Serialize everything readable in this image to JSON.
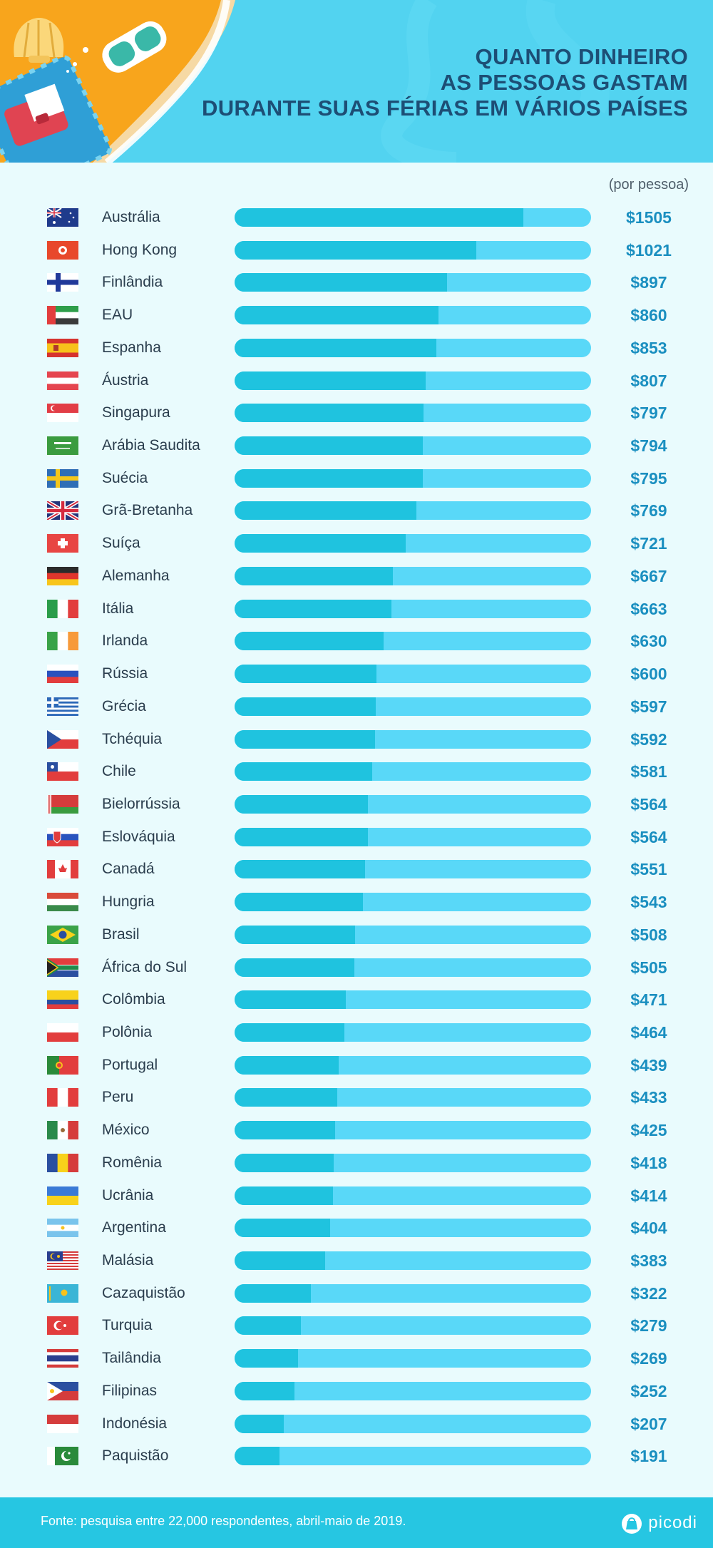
{
  "header": {
    "title_lines": [
      "QUANTO DINHEIRO",
      "AS PESSOAS GASTAM",
      "DURANTE SUAS FÉRIAS EM VÁRIOS PAÍSES"
    ]
  },
  "unit_label": "(por pessoa)",
  "chart_data": {
    "type": "bar",
    "orientation": "horizontal",
    "title": "QUANTO DINHEIRO AS PESSOAS GASTAM DURANTE SUAS FÉRIAS EM VÁRIOS PAÍSES",
    "unit": "(por pessoa)",
    "max_value": 1505,
    "categories": [
      "Austrália",
      "Hong Kong",
      "Finlândia",
      "EAU",
      "Espanha",
      "Áustria",
      "Singapura",
      "Arábia Saudita",
      "Suécia",
      "Grã-Bretanha",
      "Suíça",
      "Alemanha",
      "Itália",
      "Irlanda",
      "Rússia",
      "Grécia",
      "Tchéquia",
      "Chile",
      "Bielorrússia",
      "Eslováquia",
      "Canadá",
      "Hungria",
      "Brasil",
      "África do Sul",
      "Colômbia",
      "Polônia",
      "Portugal",
      "Peru",
      "México",
      "Romênia",
      "Ucrânia",
      "Argentina",
      "Malásia",
      "Cazaquistão",
      "Turquia",
      "Tailândia",
      "Filipinas",
      "Indonésia",
      "Paquistão"
    ],
    "values": [
      1505,
      1021,
      897,
      860,
      853,
      807,
      797,
      794,
      795,
      769,
      721,
      667,
      663,
      630,
      600,
      597,
      592,
      581,
      564,
      564,
      551,
      543,
      508,
      505,
      471,
      464,
      439,
      433,
      425,
      418,
      414,
      404,
      383,
      322,
      279,
      269,
      252,
      207,
      191
    ],
    "value_labels": [
      "$1505",
      "$1021",
      "$897",
      "$860",
      "$853",
      "$807",
      "$797",
      "$794",
      "$795",
      "$769",
      "$721",
      "$667",
      "$663",
      "$630",
      "$600",
      "$597",
      "$592",
      "$581",
      "$564",
      "$564",
      "$551",
      "$543",
      "$508",
      "$505",
      "$471",
      "$464",
      "$439",
      "$433",
      "$425",
      "$418",
      "$414",
      "$404",
      "$383",
      "$322",
      "$279",
      "$269",
      "$252",
      "$207",
      "$191"
    ],
    "flags": [
      "au-flag",
      "hk-flag",
      "fi-flag",
      "ae-flag",
      "es-flag",
      "at-flag",
      "sg-flag",
      "sa-flag",
      "se-flag",
      "gb-flag",
      "ch-flag",
      "de-flag",
      "it-flag",
      "ie-flag",
      "ru-flag",
      "gr-flag",
      "cz-flag",
      "cl-flag",
      "by-flag",
      "sk-flag",
      "ca-flag",
      "hu-flag",
      "br-flag",
      "za-flag",
      "co-flag",
      "pl-flag",
      "pt-flag",
      "pe-flag",
      "mx-flag",
      "ro-flag",
      "ua-flag",
      "ar-flag",
      "my-flag",
      "kz-flag",
      "tr-flag",
      "th-flag",
      "ph-flag",
      "id-flag",
      "pk-flag"
    ],
    "colors": {
      "bar_fill": "#1fc3df",
      "bar_track": "#59d8f8",
      "value_text": "#1a8fc0"
    }
  },
  "footer": {
    "source": "Fonte: pesquisa entre 22,000 respondentes, abril-maio de 2019.",
    "brand": "picodi"
  },
  "colors": {
    "header_bg": "#52d3f0",
    "title": "#1d4e75",
    "page_bg": "#e9fbfd",
    "footer_bg": "#26c6e2"
  }
}
